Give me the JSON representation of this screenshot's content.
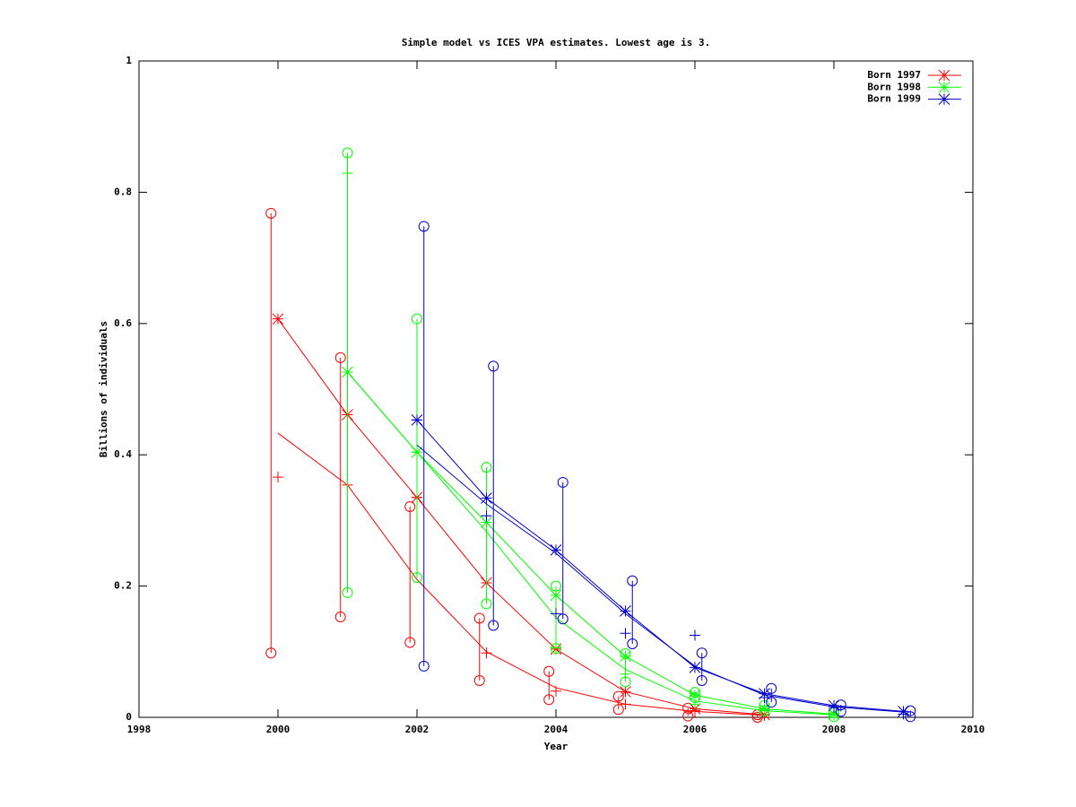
{
  "chart_data": {
    "type": "line",
    "title": "Simple model vs ICES VPA estimates. Lowest age is 3.",
    "x_label": "Year",
    "y_label": "Billions of individuals",
    "xlim": [
      1998,
      2010
    ],
    "xticks": [
      1998,
      2000,
      2002,
      2004,
      2006,
      2008,
      2010
    ],
    "ylim": [
      0,
      1
    ],
    "yticks": [
      0,
      0.2,
      0.4,
      0.6,
      0.8,
      1
    ],
    "legend": "top-right",
    "series": [
      {
        "name": "Born 1997",
        "color": "#ff0000",
        "x": [
          2000,
          2001,
          2002,
          2003,
          2004,
          2005,
          2006,
          2007
        ],
        "values": [
          0.607,
          0.461,
          0.335,
          0.205,
          0.104,
          0.039,
          0.013,
          0.004
        ],
        "alt_values": [
          0.433,
          0.354,
          0.21,
          0.1,
          0.045,
          0.02,
          0.009,
          0.003
        ],
        "plus_values": [
          0.366,
          0.354,
          0.335,
          0.098,
          0.04,
          0.02,
          0.01,
          0.003
        ],
        "range_x": [
          1999.9,
          2000.9,
          2001.9,
          2002.9,
          2003.9,
          2004.9,
          2005.9,
          2006.9
        ],
        "range_low": [
          0.098,
          0.153,
          0.114,
          0.056,
          0.027,
          0.012,
          0.002,
          0.0
        ],
        "range_high": [
          0.768,
          0.548,
          0.321,
          0.151,
          0.07,
          0.032,
          0.014,
          0.004
        ]
      },
      {
        "name": "Born 1998",
        "color": "#00ff00",
        "x": [
          2001,
          2002,
          2003,
          2004,
          2005,
          2006,
          2007,
          2008
        ],
        "values": [
          0.526,
          0.404,
          0.297,
          0.186,
          0.093,
          0.034,
          0.013,
          0.005
        ],
        "alt_values": [
          0.526,
          0.404,
          0.283,
          0.152,
          0.073,
          0.025,
          0.01,
          0.004
        ],
        "plus_values": [
          0.829,
          0.404,
          0.307,
          0.106,
          0.066,
          0.02,
          0.01,
          0.004
        ],
        "range_x": [
          2001,
          2002,
          2003,
          2004,
          2005,
          2006,
          2007,
          2008
        ],
        "range_low": [
          0.19,
          0.213,
          0.173,
          0.105,
          0.054,
          0.03,
          0.01,
          0.001
        ],
        "range_high": [
          0.86,
          0.607,
          0.381,
          0.2,
          0.097,
          0.038,
          0.018,
          0.007
        ]
      },
      {
        "name": "Born 1999",
        "color": "#0000cc",
        "x": [
          2002,
          2003,
          2004,
          2005,
          2006,
          2007,
          2008,
          2009
        ],
        "values": [
          0.453,
          0.334,
          0.255,
          0.162,
          0.076,
          0.036,
          0.018,
          0.009
        ],
        "alt_values": [
          0.415,
          0.325,
          0.25,
          0.158,
          0.078,
          0.034,
          0.016,
          0.008
        ],
        "plus_values": [
          0.453,
          0.307,
          0.158,
          0.128,
          0.125,
          0.03,
          0.015,
          0.005
        ],
        "range_x": [
          2002.1,
          2003.1,
          2004.1,
          2005.1,
          2006.1,
          2007.1,
          2008.1,
          2009.1
        ],
        "range_low": [
          0.078,
          0.14,
          0.15,
          0.112,
          0.056,
          0.023,
          0.009,
          0.001
        ],
        "range_high": [
          0.748,
          0.535,
          0.358,
          0.208,
          0.098,
          0.044,
          0.019,
          0.01
        ]
      }
    ]
  }
}
